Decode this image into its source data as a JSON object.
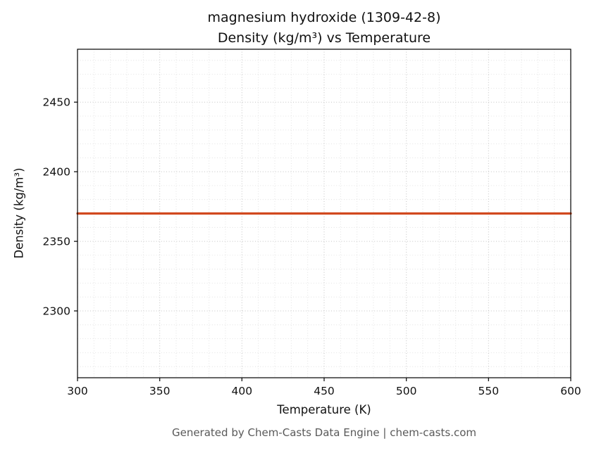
{
  "chart_data": {
    "type": "line",
    "title": "magnesium hydroxide (1309-42-8)\nDensity (kg/m³) vs Temperature",
    "xlabel": "Temperature (K)",
    "ylabel": "Density (kg/m³)",
    "x": [
      300,
      600
    ],
    "series": [
      {
        "name": "density",
        "values": [
          2370,
          2370
        ],
        "color": "#d1491f"
      }
    ],
    "xlim": [
      300,
      600
    ],
    "ylim": [
      2252,
      2488
    ],
    "xticks": [
      300,
      350,
      400,
      450,
      500,
      550,
      600
    ],
    "yticks": [
      2300,
      2350,
      2400,
      2450
    ],
    "minor_step_x": 10,
    "minor_step_y": 10,
    "grid": true,
    "grid_style": "dotted",
    "legend": "none"
  },
  "footer": {
    "text": "Generated by Chem-Casts Data Engine | chem-casts.com"
  }
}
